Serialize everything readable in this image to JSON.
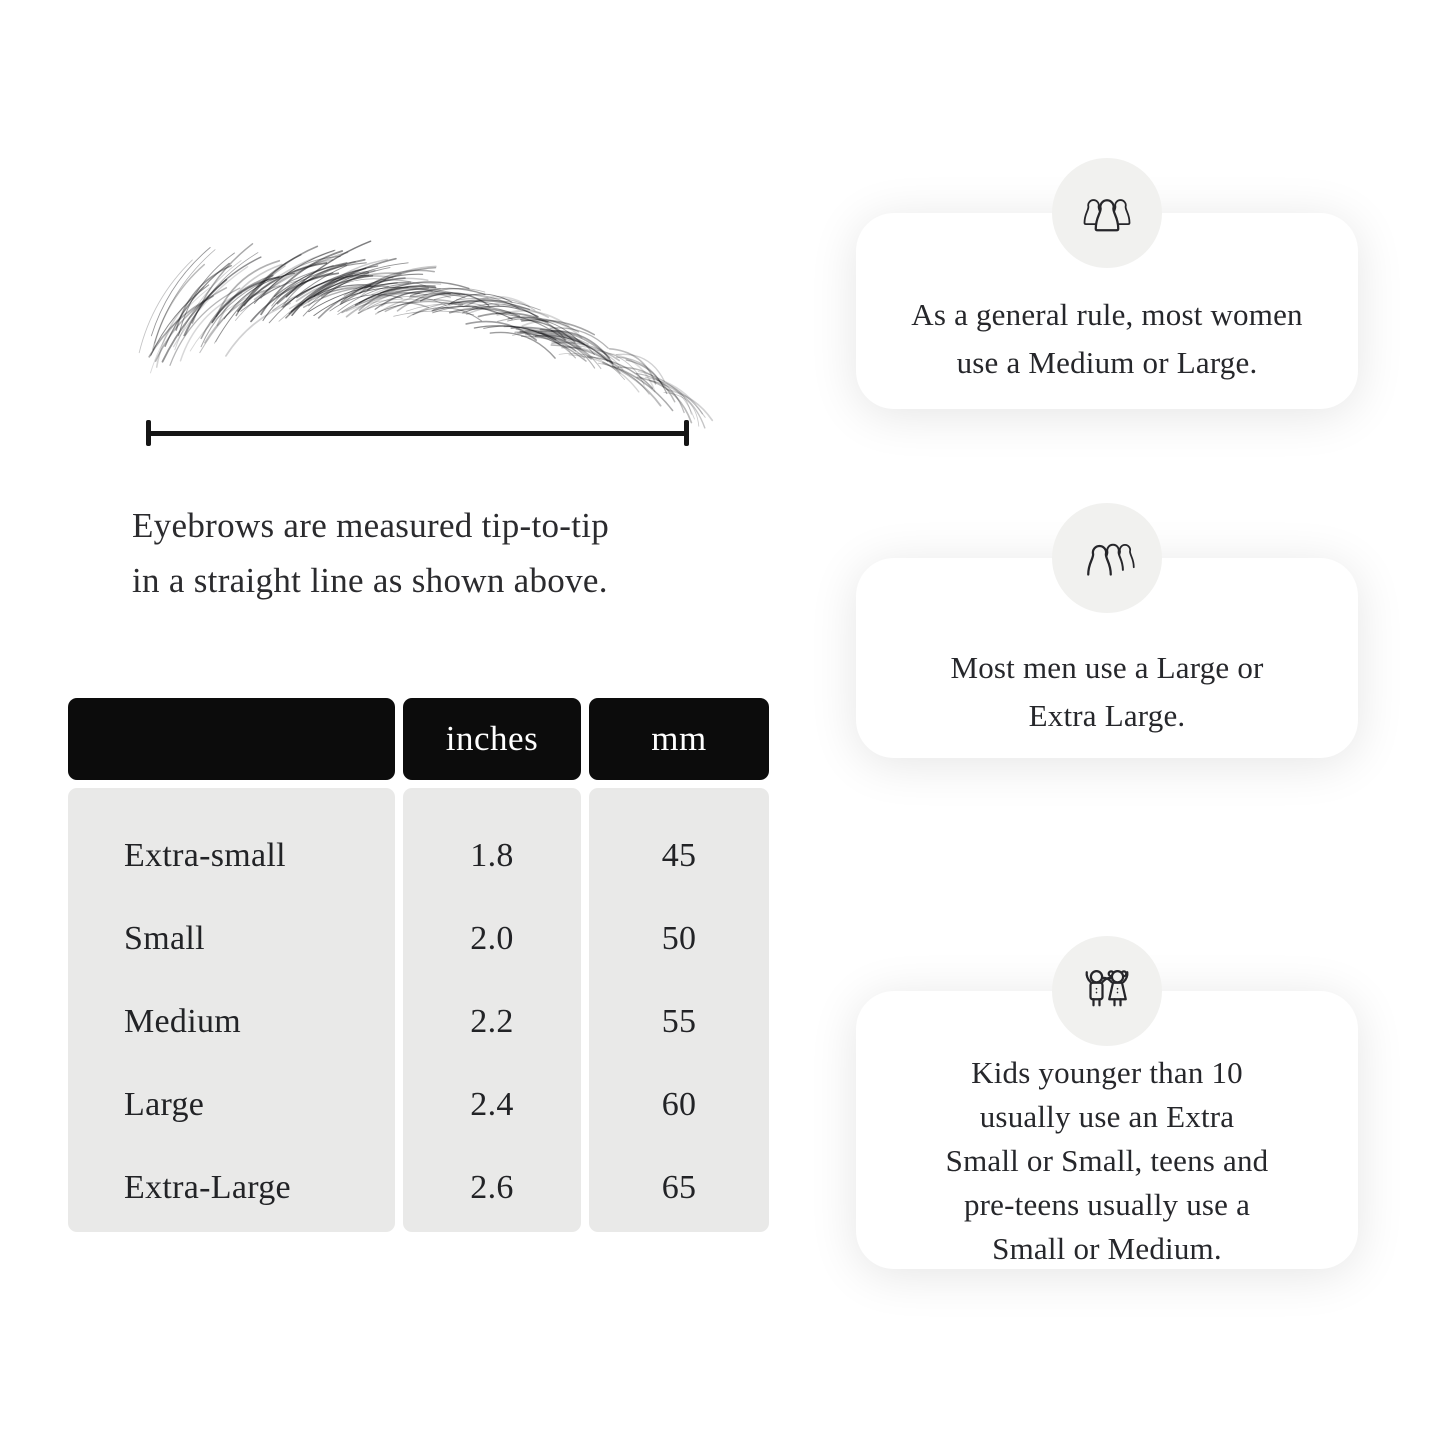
{
  "page": {
    "background": "#ffffff",
    "ink": "#232427"
  },
  "figure": {
    "caption_lines": [
      "Eyebrows are measured tip-to-tip",
      "in a straight line as shown above."
    ]
  },
  "table": {
    "headers": [
      "",
      "inches",
      "mm"
    ],
    "rows": [
      {
        "label": "Extra-small",
        "inches": "1.8",
        "mm": "45"
      },
      {
        "label": "Small",
        "inches": "2.0",
        "mm": "50"
      },
      {
        "label": "Medium",
        "inches": "2.2",
        "mm": "55"
      },
      {
        "label": "Large",
        "inches": "2.4",
        "mm": "60"
      },
      {
        "label": "Extra-Large",
        "inches": "2.6",
        "mm": "65"
      }
    ],
    "colors": {
      "header_bg": "#0c0c0c",
      "header_text": "#ffffff",
      "body_bg": "#e9e9e8"
    }
  },
  "cards": [
    {
      "icon": "women-group-icon",
      "lines": [
        "As a general rule, most women",
        "use a Medium or Large."
      ]
    },
    {
      "icon": "men-group-icon",
      "lines": [
        "Most men use a Large or",
        "Extra Large."
      ]
    },
    {
      "icon": "kids-icon",
      "lines": [
        "Kids younger than 10",
        "usually use an Extra",
        "Small or Small, teens and",
        "pre-teens usually use a",
        "Small or Medium."
      ]
    }
  ]
}
